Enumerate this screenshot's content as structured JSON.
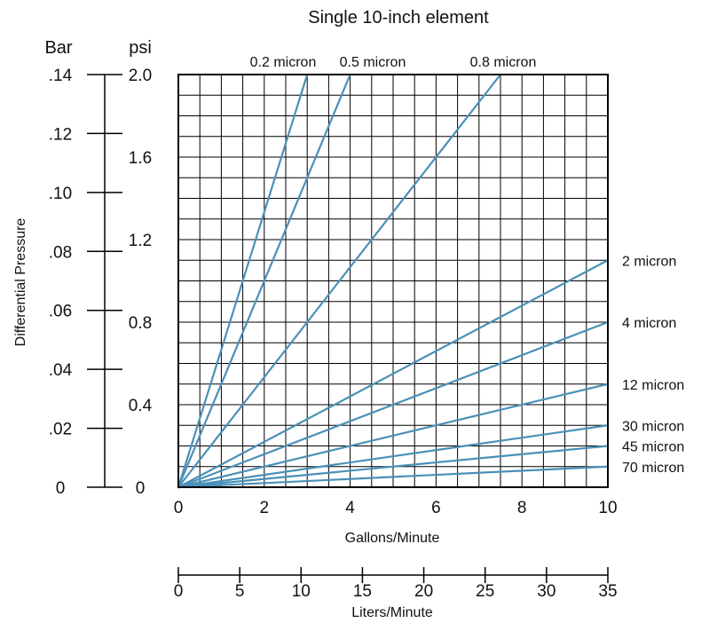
{
  "chart_data": {
    "type": "line",
    "title": "Single 10-inch element",
    "xlabel": "Gallons/Minute",
    "ylabel": "Differential Pressure",
    "x_unit_secondary_label": "Liters/Minute",
    "y_unit_primary": "psi",
    "y_unit_secondary": "Bar",
    "xlim": [
      0,
      10
    ],
    "ylim": [
      0,
      2.0
    ],
    "x_ticks": [
      "0",
      "2",
      "4",
      "6",
      "8",
      "10"
    ],
    "y_ticks": [
      "0",
      "0.4",
      "0.8",
      "1.2",
      "1.6",
      "2.0"
    ],
    "secondary_y_ticks": [
      {
        "label": "0",
        "value": 0
      },
      {
        "label": ".02",
        "value": 0.02
      },
      {
        "label": ".04",
        "value": 0.04
      },
      {
        "label": ".06",
        "value": 0.06
      },
      {
        "label": ".08",
        "value": 0.08
      },
      {
        "label": ".10",
        "value": 0.1
      },
      {
        "label": ".12",
        "value": 0.12
      },
      {
        "label": ".14",
        "value": 0.14
      }
    ],
    "secondary_y_max": 0.14,
    "secondary_x_ticks": [
      {
        "label": "0",
        "value": 0
      },
      {
        "label": "5",
        "value": 5
      },
      {
        "label": "10",
        "value": 10
      },
      {
        "label": "15",
        "value": 15
      },
      {
        "label": "20",
        "value": 20
      },
      {
        "label": "25",
        "value": 25
      },
      {
        "label": "30",
        "value": 30
      },
      {
        "label": "35",
        "value": 35
      }
    ],
    "secondary_x_max": 35,
    "grid": true,
    "line_color": "#4a90b8",
    "series": [
      {
        "name": "0.2 micron",
        "x": [
          0,
          3.0
        ],
        "y": [
          0,
          2.0
        ]
      },
      {
        "name": "0.5 micron",
        "x": [
          0,
          4.0
        ],
        "y": [
          0,
          2.0
        ]
      },
      {
        "name": "0.8 micron",
        "x": [
          0,
          7.5
        ],
        "y": [
          0,
          2.0
        ]
      },
      {
        "name": "2 micron",
        "x": [
          0,
          10
        ],
        "y": [
          0,
          1.1
        ]
      },
      {
        "name": "4 micron",
        "x": [
          0,
          10
        ],
        "y": [
          0,
          0.8
        ]
      },
      {
        "name": "12 micron",
        "x": [
          0,
          10
        ],
        "y": [
          0,
          0.5
        ]
      },
      {
        "name": "30 micron",
        "x": [
          0,
          10
        ],
        "y": [
          0,
          0.3
        ]
      },
      {
        "name": "45 micron",
        "x": [
          0,
          10
        ],
        "y": [
          0,
          0.2
        ]
      },
      {
        "name": "70 micron",
        "x": [
          0,
          10
        ],
        "y": [
          0,
          0.1
        ]
      }
    ]
  }
}
